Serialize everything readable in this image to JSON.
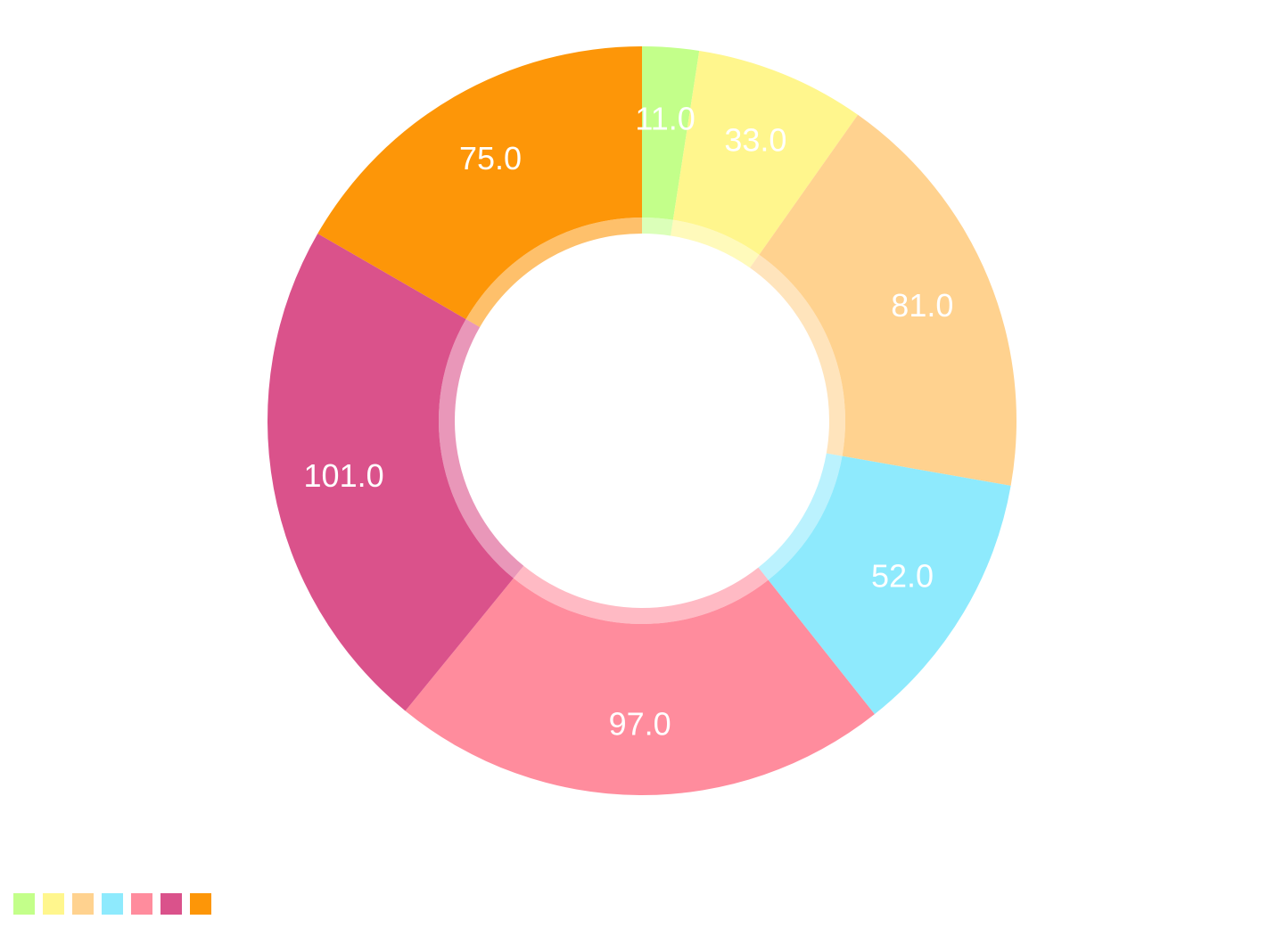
{
  "chart_data": {
    "type": "pie",
    "variant": "donut",
    "values": [
      11.0,
      33.0,
      81.0,
      52.0,
      97.0,
      101.0,
      75.0
    ],
    "labels": [
      "11.0",
      "33.0",
      "81.0",
      "52.0",
      "97.0",
      "101.0",
      "75.0"
    ],
    "colors": [
      "#c3ff8a",
      "#fff68d",
      "#ffd28f",
      "#8eeafd",
      "#ff8c9d",
      "#da528b",
      "#fd9608"
    ],
    "start_angle": "top",
    "direction": "clockwise",
    "legend": {
      "position": "bottom-left",
      "show_text": false
    }
  }
}
